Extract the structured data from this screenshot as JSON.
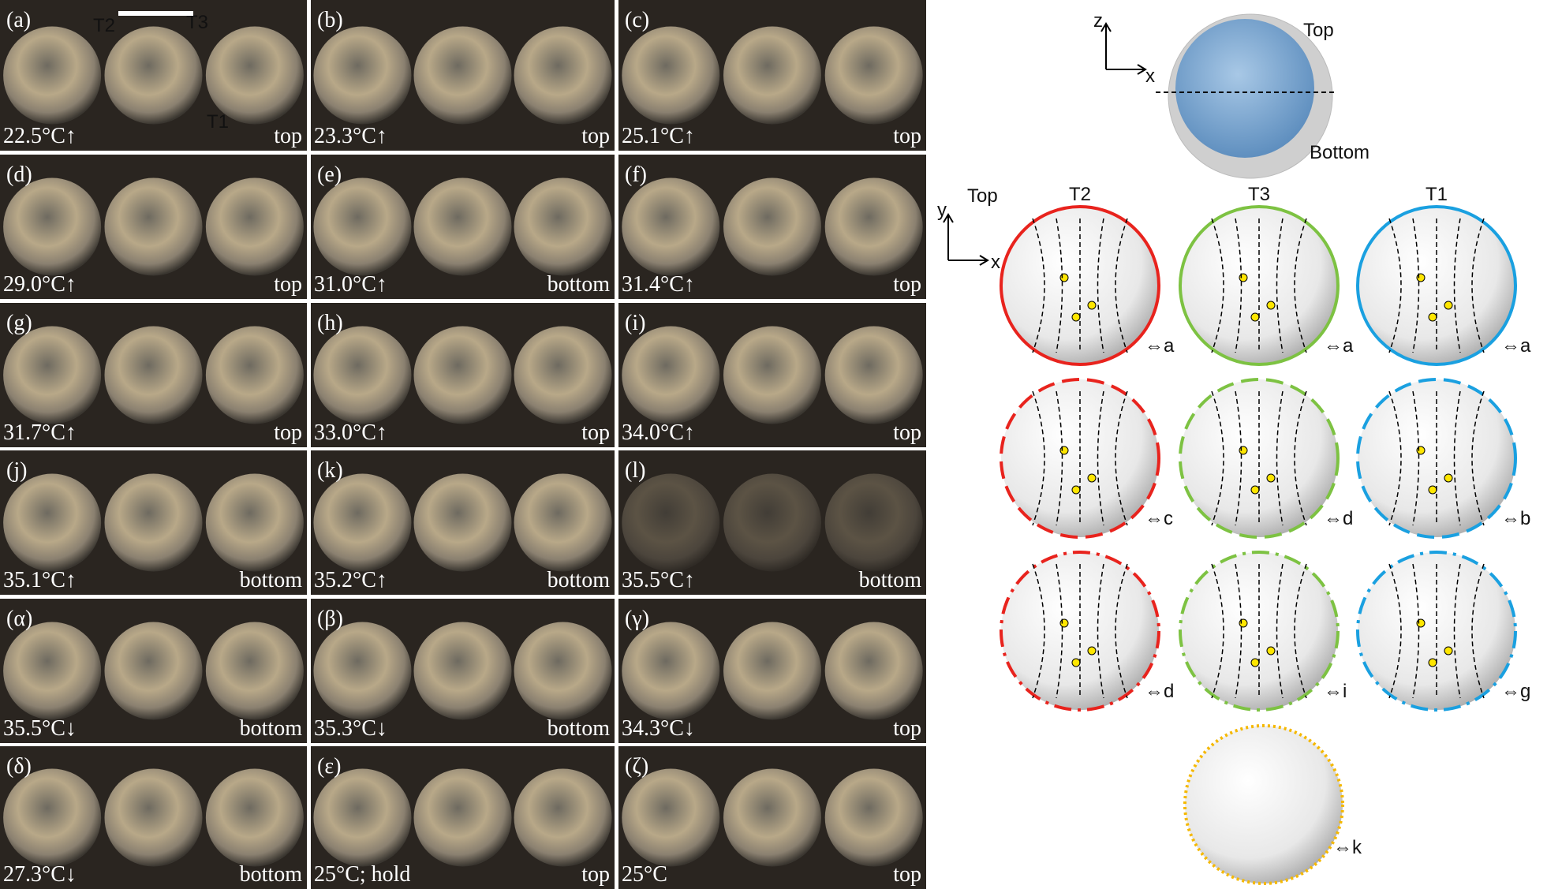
{
  "panels": [
    {
      "label": "(a)",
      "temp": "22.5°C↑",
      "side": "top",
      "annotations": [
        {
          "text": "T2",
          "color": "#e8231d"
        },
        {
          "text": "T3",
          "color": "#7dc242"
        },
        {
          "text": "T1",
          "color": "#1aa0e0"
        }
      ]
    },
    {
      "label": "(b)",
      "temp": "23.3°C↑",
      "side": "top"
    },
    {
      "label": "(c)",
      "temp": "25.1°C↑",
      "side": "top"
    },
    {
      "label": "(d)",
      "temp": "29.0°C↑",
      "side": "top"
    },
    {
      "label": "(e)",
      "temp": "31.0°C↑",
      "side": "bottom"
    },
    {
      "label": "(f)",
      "temp": "31.4°C↑",
      "side": "top"
    },
    {
      "label": "(g)",
      "temp": "31.7°C↑",
      "side": "top"
    },
    {
      "label": "(h)",
      "temp": "33.0°C↑",
      "side": "top"
    },
    {
      "label": "(i)",
      "temp": "34.0°C↑",
      "side": "top"
    },
    {
      "label": "(j)",
      "temp": "35.1°C↑",
      "side": "bottom"
    },
    {
      "label": "(k)",
      "temp": "35.2°C↑",
      "side": "bottom"
    },
    {
      "label": "(l)",
      "temp": "35.5°C↑",
      "side": "bottom"
    },
    {
      "label": "(α)",
      "temp": "35.5°C↓",
      "side": "bottom"
    },
    {
      "label": "(β)",
      "temp": "35.3°C↓",
      "side": "bottom"
    },
    {
      "label": "(γ)",
      "temp": "34.3°C↓",
      "side": "top"
    },
    {
      "label": "(δ)",
      "temp": "27.3°C↓",
      "side": "bottom"
    },
    {
      "label": "(ε)",
      "temp": "25°C; hold",
      "side": "top"
    },
    {
      "label": "(ζ)",
      "temp": "25°C",
      "side": "top"
    }
  ],
  "schematic": {
    "z": "z",
    "x": "x",
    "top": "Top",
    "bottom": "Bottom"
  },
  "view": {
    "title": "Top",
    "y": "y",
    "x": "x"
  },
  "columns": [
    {
      "name": "T2",
      "color": "#e8231d"
    },
    {
      "name": "T3",
      "color": "#7dc242"
    },
    {
      "name": "T1",
      "color": "#1aa0e0"
    }
  ],
  "sphere_rows": [
    [
      "⇔a",
      "⇔a",
      "⇔a"
    ],
    [
      "⇔c",
      "⇔d",
      "⇔b"
    ],
    [
      "⇔d",
      "⇔i",
      "⇔g"
    ]
  ],
  "bottom_sphere": {
    "ref": "⇔k",
    "color": "#f5b800"
  }
}
